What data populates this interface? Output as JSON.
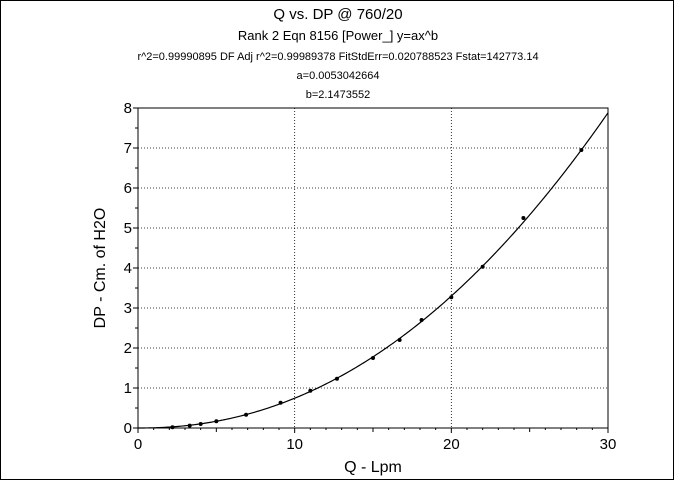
{
  "chart_data": {
    "type": "scatter",
    "title": "Q vs. DP @ 760/20",
    "subtitle_lines": [
      "Rank 2  Eqn 8156  [Power_] y=ax^b",
      "r^2=0.99990895  DF Adj r^2=0.99989378  FitStdErr=0.020788523  Fstat=142773.14",
      "a=0.0053042664",
      "b=2.1473552"
    ],
    "xlabel": "Q - Lpm",
    "ylabel": "DP - Cm. of H2O",
    "xlim": [
      0,
      30
    ],
    "ylim": [
      0,
      8
    ],
    "x_ticks": [
      0,
      10,
      20,
      30
    ],
    "y_ticks": [
      0,
      1,
      2,
      3,
      4,
      5,
      6,
      7,
      8
    ],
    "grid": true,
    "fit": {
      "equation": "y=ax^b",
      "a": 0.0053042664,
      "b": 2.1473552
    },
    "points": {
      "x": [
        2.2,
        3.3,
        4.0,
        5.0,
        6.9,
        9.1,
        11.0,
        12.7,
        15.0,
        16.7,
        18.1,
        20.0,
        22.0,
        24.6,
        28.3
      ],
      "y": [
        0.02,
        0.06,
        0.1,
        0.17,
        0.33,
        0.63,
        0.93,
        1.23,
        1.75,
        2.2,
        2.7,
        3.27,
        4.03,
        5.25,
        6.95
      ]
    }
  }
}
